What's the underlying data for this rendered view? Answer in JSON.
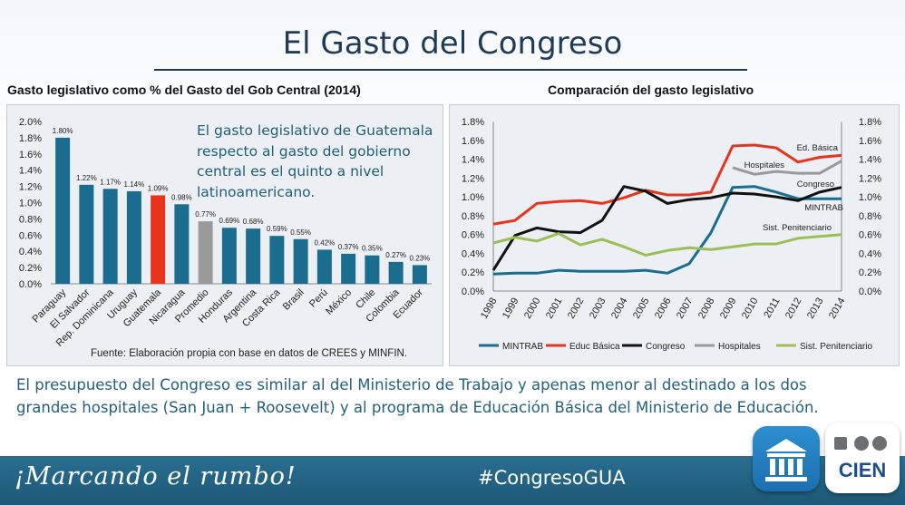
{
  "slide": {
    "title": "El Gasto del Congreso",
    "bottom_text": "El presupuesto del Congreso es similar al del Ministerio de Trabajo y apenas menor al destinado a los dos grandes hospitales (San Juan + Roosevelt) y al programa de Educación Básica del Ministerio de Educación.",
    "footer": {
      "slogan": "¡Marcando el rumbo!",
      "hashtag": "#CongresoGUA"
    },
    "logos": {
      "cien_text": "CIEN"
    },
    "colors": {
      "teal": "#1a6d8e",
      "red": "#e8341c",
      "gray": "#9a9a9a",
      "footer": "#226587",
      "title": "#1f3b57"
    }
  },
  "chart_data": [
    {
      "type": "bar",
      "title": "Gasto legislativo como % del Gasto del Gob Central (2014)",
      "categories": [
        "Paraguay",
        "El Salvador",
        "Rep. Dominicana",
        "Uruguay",
        "Guatemala",
        "Nicaragua",
        "Promedio",
        "Honduras",
        "Argentina",
        "Costa Rica",
        "Brasil",
        "Perú",
        "México",
        "Chile",
        "Colombia",
        "Ecuador"
      ],
      "values": [
        1.8,
        1.22,
        1.17,
        1.14,
        1.09,
        0.98,
        0.77,
        0.69,
        0.68,
        0.59,
        0.55,
        0.42,
        0.37,
        0.35,
        0.27,
        0.23
      ],
      "value_labels": [
        "1.80%",
        "1.22%",
        "1.17%",
        "1.14%",
        "1.09%",
        "0.98%",
        "0.77%",
        "0.69%",
        "0.68%",
        "0.59%",
        "0.55%",
        "0.42%",
        "0.37%",
        "0.35%",
        "0.27%",
        "0.23%"
      ],
      "highlight": {
        "Guatemala": "red",
        "Promedio": "gray"
      },
      "ylim": [
        0,
        2.0
      ],
      "yticks": [
        "0.0%",
        "0.2%",
        "0.4%",
        "0.6%",
        "0.8%",
        "1.0%",
        "1.2%",
        "1.4%",
        "1.6%",
        "1.8%",
        "2.0%"
      ],
      "annotation": "El gasto legislativo de Guatemala respecto al gasto del gobierno central es el quinto a nivel latinoamericano.",
      "source": "Fuente: Elaboración propia con base en datos de CREES y MINFIN."
    },
    {
      "type": "line",
      "title": "Comparación del gasto legislativo",
      "x": [
        "1998",
        "1999",
        "2000",
        "2001",
        "2002",
        "2003",
        "2004",
        "2005",
        "2006",
        "2007",
        "2008",
        "2009",
        "2010",
        "2011",
        "2012",
        "2013",
        "2014"
      ],
      "ylim": [
        0,
        1.8
      ],
      "yticks": [
        "0.0%",
        "0.2%",
        "0.4%",
        "0.6%",
        "0.8%",
        "1.0%",
        "1.2%",
        "1.4%",
        "1.6%",
        "1.8%"
      ],
      "series": [
        {
          "name": "MINTRAB",
          "color": "#1a6d8e",
          "values": [
            0.18,
            0.19,
            0.19,
            0.22,
            0.21,
            0.21,
            0.21,
            0.22,
            0.19,
            0.29,
            0.62,
            1.1,
            1.11,
            1.05,
            0.98,
            0.98,
            0.98
          ]
        },
        {
          "name": "Educ Básica",
          "color": "#e8341c",
          "values": [
            0.71,
            0.75,
            0.93,
            0.95,
            0.96,
            0.93,
            0.99,
            1.07,
            1.02,
            1.02,
            1.05,
            1.54,
            1.55,
            1.52,
            1.37,
            1.42,
            1.44
          ]
        },
        {
          "name": "Congreso",
          "color": "#111111",
          "values": [
            0.22,
            0.59,
            0.67,
            0.63,
            0.62,
            0.75,
            1.11,
            1.06,
            0.93,
            0.97,
            0.99,
            1.04,
            1.03,
            1.0,
            0.96,
            1.05,
            1.1
          ]
        },
        {
          "name": "Hospitales",
          "color": "#9a9a9a",
          "values": [
            null,
            null,
            null,
            null,
            null,
            null,
            null,
            null,
            null,
            null,
            null,
            1.31,
            1.24,
            1.27,
            1.25,
            1.25,
            1.38
          ]
        },
        {
          "name": "Sist. Penitenciario",
          "color": "#9bbf55",
          "values": [
            0.51,
            0.57,
            0.53,
            0.61,
            0.49,
            0.55,
            0.47,
            0.38,
            0.43,
            0.46,
            0.44,
            0.47,
            0.5,
            0.5,
            0.56,
            0.58,
            0.6
          ]
        }
      ],
      "line_labels": {
        "educ": "Ed. Básica",
        "hosp": "Hospitales",
        "cong": "Congreso",
        "mintrab": "MINTRAB",
        "sist": "Sist. Penitenciario"
      }
    }
  ]
}
